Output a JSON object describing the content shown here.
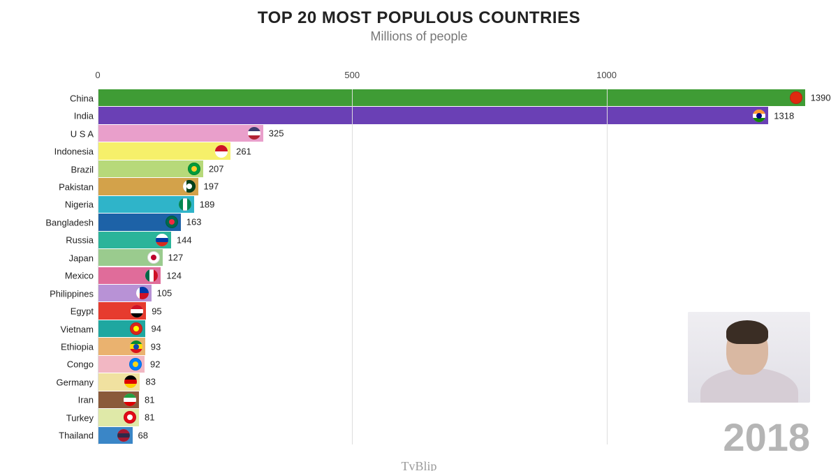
{
  "title": "TOP 20 MOST POPULOUS COUNTRIES",
  "subtitle": "Millions of people",
  "year": "2018",
  "attribution": "TvBlip",
  "chart": {
    "type": "bar-horizontal",
    "x_axis": {
      "min": 0,
      "max": 1400,
      "ticks": [
        0,
        500,
        1000
      ]
    },
    "grid_color": "#dddddd",
    "background_color": "#ffffff",
    "label_fontsize": 13,
    "value_fontsize": 13,
    "row_gap": 1,
    "countries": [
      {
        "name": "China",
        "value": 1390,
        "color": "#3f9c35",
        "flag": {
          "bg": "#de2910",
          "stars": "#ffde00"
        }
      },
      {
        "name": "India",
        "value": 1318,
        "color": "#6a40b5",
        "flag": {
          "top": "#ff9933",
          "mid": "#ffffff",
          "bot": "#138808",
          "dot": "#000080"
        }
      },
      {
        "name": "U S A",
        "value": 325,
        "color": "#e99fcb",
        "flag": {
          "top": "#3c3b6e",
          "bot": "#b22234",
          "mid": "#ffffff"
        }
      },
      {
        "name": "Indonesia",
        "value": 261,
        "color": "#f6f06a",
        "flag": {
          "top": "#ce1126",
          "bot": "#ffffff"
        }
      },
      {
        "name": "Brazil",
        "value": 207,
        "color": "#b7d97a",
        "flag": {
          "bg": "#009b3a",
          "dot": "#ffcc29"
        }
      },
      {
        "name": "Pakistan",
        "value": 197,
        "color": "#d3a24a",
        "flag": {
          "left": "#ffffff",
          "bg": "#01411c",
          "dot": "#ffffff"
        }
      },
      {
        "name": "Nigeria",
        "value": 189,
        "color": "#2fb4c9",
        "flag": {
          "left": "#008751",
          "bg": "#ffffff",
          "right": "#008751"
        }
      },
      {
        "name": "Bangladesh",
        "value": 163,
        "color": "#1d62a7",
        "flag": {
          "bg": "#006a4e",
          "dot": "#f42a41"
        }
      },
      {
        "name": "Russia",
        "value": 144,
        "color": "#2bb49a",
        "flag": {
          "top": "#ffffff",
          "mid": "#0039a6",
          "bot": "#d52b1e"
        }
      },
      {
        "name": "Japan",
        "value": 127,
        "color": "#9acb8e",
        "flag": {
          "bg": "#ffffff",
          "dot": "#bc002d"
        }
      },
      {
        "name": "Mexico",
        "value": 124,
        "color": "#e06c9a",
        "flag": {
          "left": "#006847",
          "bg": "#ffffff",
          "right": "#ce1126"
        }
      },
      {
        "name": "Philippines",
        "value": 105,
        "color": "#b892d6",
        "flag": {
          "top": "#0038a8",
          "bot": "#ce1126",
          "left": "#ffffff"
        }
      },
      {
        "name": "Egypt",
        "value": 95,
        "color": "#e63b2e",
        "flag": {
          "top": "#ce1126",
          "mid": "#ffffff",
          "bot": "#000000"
        }
      },
      {
        "name": "Vietnam",
        "value": 94,
        "color": "#1fa7a0",
        "flag": {
          "bg": "#da251d",
          "dot": "#ffff00"
        }
      },
      {
        "name": "Ethiopia",
        "value": 93,
        "color": "#eab26f",
        "flag": {
          "top": "#078930",
          "mid": "#fcdd09",
          "bot": "#da121a",
          "dot": "#0f47af"
        }
      },
      {
        "name": "Congo",
        "value": 92,
        "color": "#f2b7c3",
        "flag": {
          "bg": "#007fff",
          "dot": "#f7d618"
        }
      },
      {
        "name": "Germany",
        "value": 83,
        "color": "#f0e1a0",
        "flag": {
          "top": "#000000",
          "mid": "#dd0000",
          "bot": "#ffce00"
        }
      },
      {
        "name": "Iran",
        "value": 81,
        "color": "#8a5a3a",
        "flag": {
          "top": "#239f40",
          "mid": "#ffffff",
          "bot": "#da0000"
        }
      },
      {
        "name": "Turkey",
        "value": 81,
        "color": "#dfe9a8",
        "flag": {
          "bg": "#e30a17",
          "dot": "#ffffff"
        }
      },
      {
        "name": "Thailand",
        "value": 68,
        "color": "#3a86c7",
        "flag": {
          "top": "#a51931",
          "mid": "#2d2a4a",
          "bot": "#a51931"
        }
      }
    ]
  },
  "style": {
    "title_fontsize": 24,
    "title_color": "#222222",
    "subtitle_fontsize": 18,
    "subtitle_color": "#777777",
    "year_fontsize": 56,
    "year_color": "#b5b5b5"
  }
}
